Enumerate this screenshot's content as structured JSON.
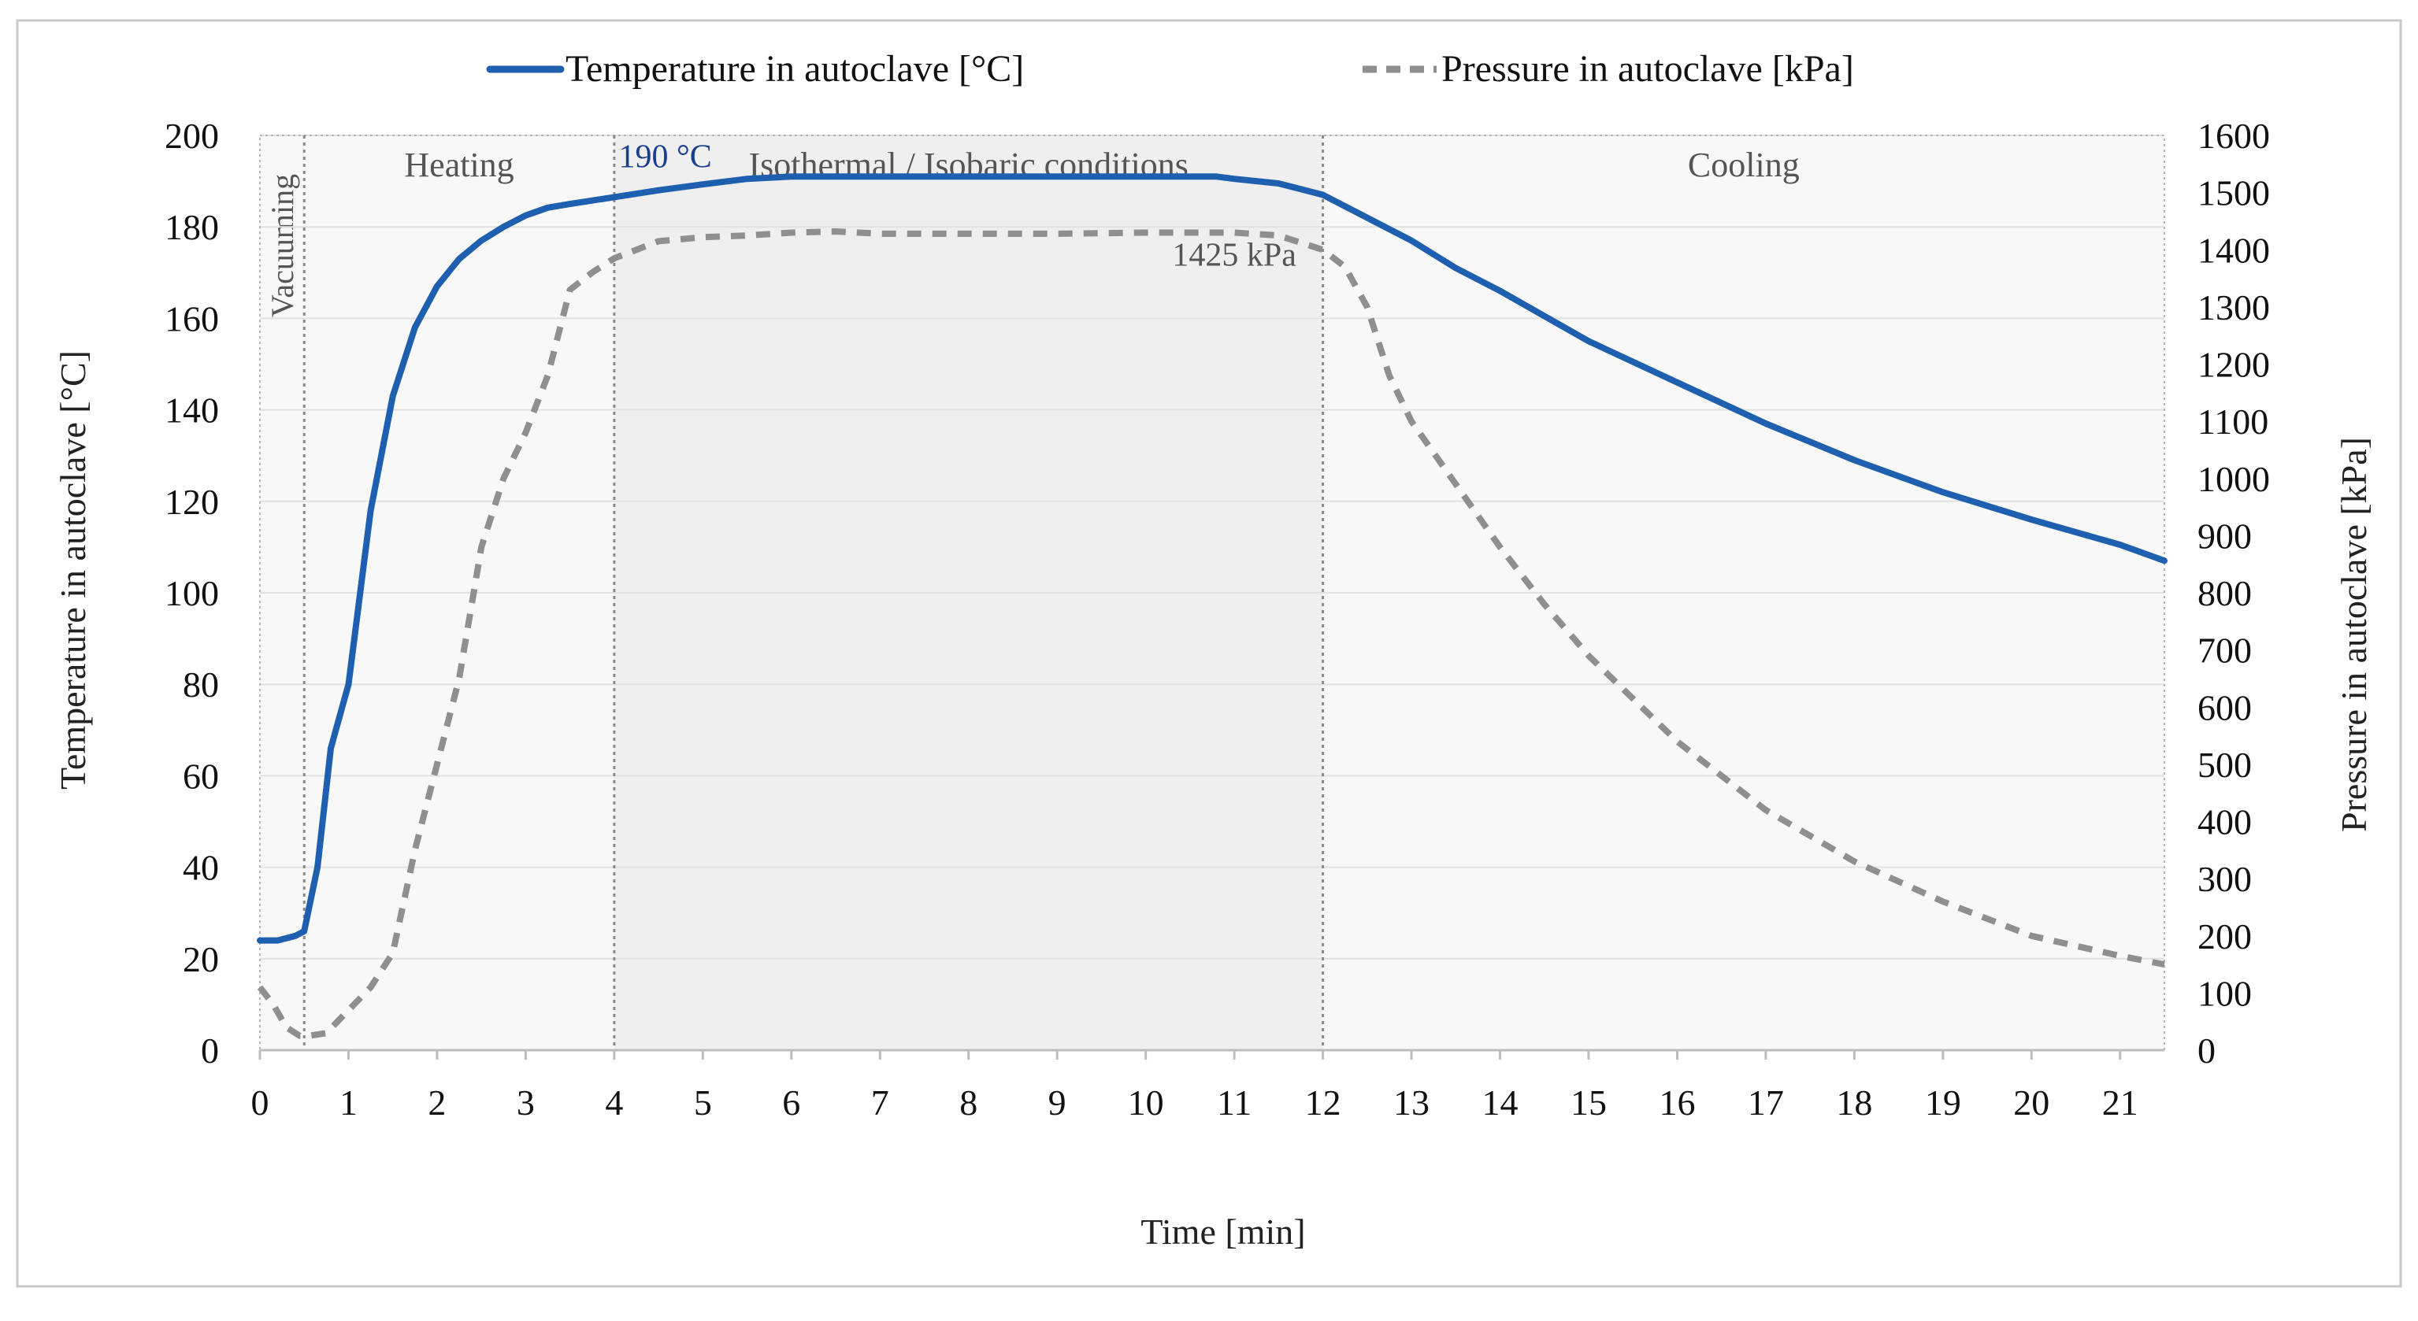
{
  "colors": {
    "temperature": "#1f5fb0",
    "pressure": "#8f8f8f",
    "frame": "#c8c8c8",
    "grid": "#e1e1e1",
    "phase_light": "#f8f8f8",
    "phase_dark": "#efefef",
    "divider": "#8a8a8a",
    "temp_annotation": "#1a3f8f",
    "pressure_annotation": "#555555"
  },
  "chart_data": {
    "type": "line",
    "title": "",
    "xlabel": "Time [min]",
    "ylabel": "Temperature in autoclave [°C]",
    "y2label": "Pressure in autoclave [kPa]",
    "xlim": [
      0,
      21.5
    ],
    "ylim": [
      0,
      200
    ],
    "y2lim": [
      0,
      1600
    ],
    "x_ticks": [
      "0",
      "1",
      "2",
      "3",
      "4",
      "5",
      "6",
      "7",
      "8",
      "9",
      "10",
      "11",
      "12",
      "13",
      "14",
      "15",
      "16",
      "17",
      "18",
      "19",
      "20",
      "21"
    ],
    "y_ticks": [
      "0",
      "20",
      "40",
      "60",
      "80",
      "100",
      "120",
      "140",
      "160",
      "180",
      "200"
    ],
    "y2_ticks": [
      "0",
      "100",
      "200",
      "300",
      "400",
      "500",
      "600",
      "700",
      "800",
      "900",
      "1000",
      "1100",
      "1200",
      "1300",
      "1400",
      "1500",
      "1600"
    ],
    "grid": true,
    "legend": {
      "position": "top-center",
      "entries": [
        "Temperature in autoclave [°C]",
        "Pressure in autoclave [kPa]"
      ]
    },
    "phases": [
      {
        "name": "Vacuuming",
        "start": 0,
        "end": 0.5,
        "label_orientation": "vertical"
      },
      {
        "name": "Heating",
        "start": 0.5,
        "end": 4
      },
      {
        "name": "Isothermal / Isobaric conditions",
        "start": 4,
        "end": 12
      },
      {
        "name": "Cooling",
        "start": 12,
        "end": 21.5
      }
    ],
    "annotations": [
      {
        "text": "190 °C",
        "series": "Temperature in autoclave [°C]",
        "x": 4.05,
        "y": 193
      },
      {
        "text": "1425 kPa",
        "series": "Pressure in autoclave [kPa]",
        "x": 10.3,
        "y2": 1372
      }
    ],
    "series": [
      {
        "name": "Temperature in autoclave [°C]",
        "axis": "left",
        "style": "solid",
        "x": [
          0,
          0.2,
          0.4,
          0.5,
          0.65,
          0.8,
          1.0,
          1.25,
          1.5,
          1.75,
          2.0,
          2.25,
          2.5,
          2.75,
          3.0,
          3.25,
          3.5,
          4.0,
          4.5,
          5.0,
          5.5,
          6.0,
          7.0,
          8.0,
          9.0,
          10.0,
          10.8,
          11.0,
          11.5,
          12.0,
          12.5,
          13.0,
          13.5,
          14.0,
          15.0,
          16.0,
          17.0,
          18.0,
          19.0,
          20.0,
          21.0,
          21.5
        ],
        "values": [
          24,
          24,
          25,
          26,
          40,
          66,
          80,
          118,
          143,
          158,
          167,
          173,
          177,
          180,
          182.5,
          184.2,
          185,
          186.5,
          188,
          189.3,
          190.5,
          191,
          191,
          191,
          191,
          191,
          191,
          190.5,
          189.5,
          187,
          182,
          177,
          171,
          166,
          155,
          146,
          137,
          129,
          122,
          116,
          110.5,
          107
        ]
      },
      {
        "name": "Pressure in autoclave [kPa]",
        "axis": "right",
        "style": "dashed",
        "x": [
          0,
          0.15,
          0.3,
          0.45,
          0.55,
          0.75,
          1.0,
          1.25,
          1.5,
          1.75,
          2.0,
          2.25,
          2.5,
          2.75,
          3.0,
          3.25,
          3.5,
          3.75,
          4.0,
          4.5,
          5.0,
          5.5,
          6.0,
          6.5,
          7.0,
          8.0,
          9.0,
          10.0,
          11.0,
          11.5,
          12.0,
          12.25,
          12.5,
          12.75,
          13.0,
          13.5,
          14.0,
          14.5,
          15.0,
          16.0,
          17.0,
          18.0,
          19.0,
          20.0,
          21.0,
          21.5
        ],
        "values": [
          110,
          80,
          40,
          25,
          25,
          30,
          70,
          110,
          170,
          350,
          500,
          650,
          880,
          1000,
          1080,
          1180,
          1330,
          1360,
          1385,
          1415,
          1422,
          1425,
          1430,
          1432,
          1428,
          1428,
          1428,
          1430,
          1430,
          1425,
          1400,
          1370,
          1300,
          1180,
          1100,
          990,
          880,
          780,
          690,
          540,
          420,
          330,
          260,
          200,
          165,
          150
        ]
      }
    ]
  }
}
